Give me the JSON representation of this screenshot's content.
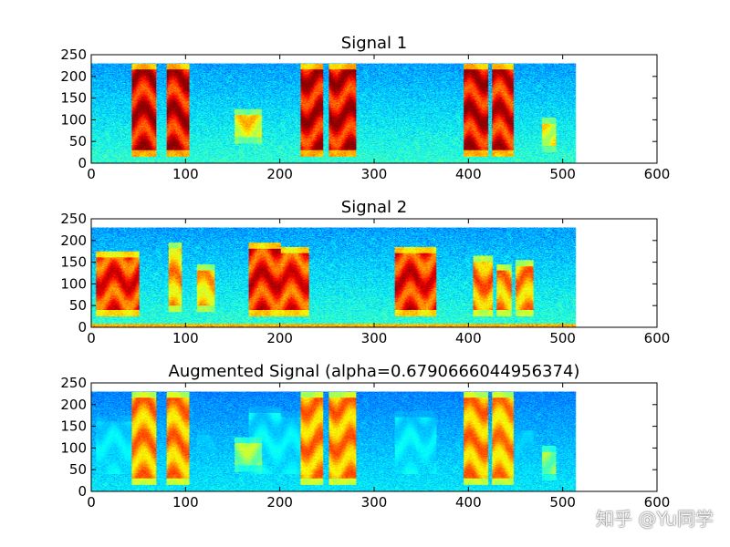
{
  "chart_data": [
    {
      "type": "heatmap",
      "title": "Signal 1",
      "xlabel": "",
      "ylabel": "",
      "xlim": [
        0,
        600
      ],
      "ylim": [
        0,
        250
      ],
      "xticks": [
        "0",
        "100",
        "200",
        "300",
        "400",
        "500",
        "600"
      ],
      "yticks": [
        "0",
        "50",
        "100",
        "150",
        "200",
        "250"
      ],
      "data_extent": {
        "x": [
          0,
          513
        ],
        "y": [
          0,
          229
        ]
      },
      "active_segments": [
        {
          "x": [
            43,
            68
          ],
          "y": [
            30,
            215
          ],
          "strength": 1.0
        },
        {
          "x": [
            80,
            103
          ],
          "y": [
            30,
            215
          ],
          "strength": 1.0
        },
        {
          "x": [
            152,
            180
          ],
          "y": [
            60,
            110
          ],
          "strength": 0.35
        },
        {
          "x": [
            222,
            245
          ],
          "y": [
            30,
            215
          ],
          "strength": 1.0
        },
        {
          "x": [
            252,
            280
          ],
          "y": [
            30,
            215
          ],
          "strength": 1.0
        },
        {
          "x": [
            395,
            420
          ],
          "y": [
            30,
            215
          ],
          "strength": 1.0
        },
        {
          "x": [
            425,
            447
          ],
          "y": [
            30,
            215
          ],
          "strength": 0.95
        },
        {
          "x": [
            478,
            492
          ],
          "y": [
            40,
            90
          ],
          "strength": 0.3
        }
      ]
    },
    {
      "type": "heatmap",
      "title": "Signal 2",
      "xlabel": "",
      "ylabel": "",
      "xlim": [
        0,
        600
      ],
      "ylim": [
        0,
        250
      ],
      "xticks": [
        "0",
        "100",
        "200",
        "300",
        "400",
        "500",
        "600"
      ],
      "yticks": [
        "0",
        "50",
        "100",
        "150",
        "200",
        "250"
      ],
      "data_extent": {
        "x": [
          0,
          513
        ],
        "y": [
          0,
          229
        ]
      },
      "active_segments": [
        {
          "x": [
            5,
            50
          ],
          "y": [
            40,
            160
          ],
          "strength": 0.85
        },
        {
          "x": [
            82,
            95
          ],
          "y": [
            50,
            180
          ],
          "strength": 0.5
        },
        {
          "x": [
            112,
            130
          ],
          "y": [
            50,
            130
          ],
          "strength": 0.45
        },
        {
          "x": [
            167,
            200
          ],
          "y": [
            40,
            180
          ],
          "strength": 0.9
        },
        {
          "x": [
            200,
            230
          ],
          "y": [
            40,
            170
          ],
          "strength": 0.85
        },
        {
          "x": [
            322,
            345
          ],
          "y": [
            40,
            170
          ],
          "strength": 0.9
        },
        {
          "x": [
            345,
            365
          ],
          "y": [
            40,
            170
          ],
          "strength": 0.85
        },
        {
          "x": [
            405,
            425
          ],
          "y": [
            40,
            150
          ],
          "strength": 0.6
        },
        {
          "x": [
            430,
            445
          ],
          "y": [
            40,
            130
          ],
          "strength": 0.55
        },
        {
          "x": [
            450,
            468
          ],
          "y": [
            40,
            140
          ],
          "strength": 0.55
        }
      ]
    },
    {
      "type": "heatmap",
      "title": "Augmented Signal (alpha=0.6790666044956374)",
      "xlabel": "",
      "ylabel": "",
      "alpha": 0.6790666044956374,
      "xlim": [
        0,
        600
      ],
      "ylim": [
        0,
        250
      ],
      "xticks": [
        "0",
        "100",
        "200",
        "300",
        "400",
        "500",
        "600"
      ],
      "yticks": [
        "0",
        "50",
        "100",
        "150",
        "200",
        "250"
      ],
      "data_extent": {
        "x": [
          0,
          513
        ],
        "y": [
          0,
          229
        ]
      },
      "mix_of": [
        "Signal 1",
        "Signal 2"
      ]
    }
  ],
  "watermark": "知乎 @Yu同学",
  "colors": {
    "background": "#ffffff",
    "axis": "#000000",
    "colormap": [
      "#00007f",
      "#0000ff",
      "#007fff",
      "#00ffff",
      "#7fff7f",
      "#ffff00",
      "#ff7f00",
      "#ff0000",
      "#7f0000"
    ]
  }
}
